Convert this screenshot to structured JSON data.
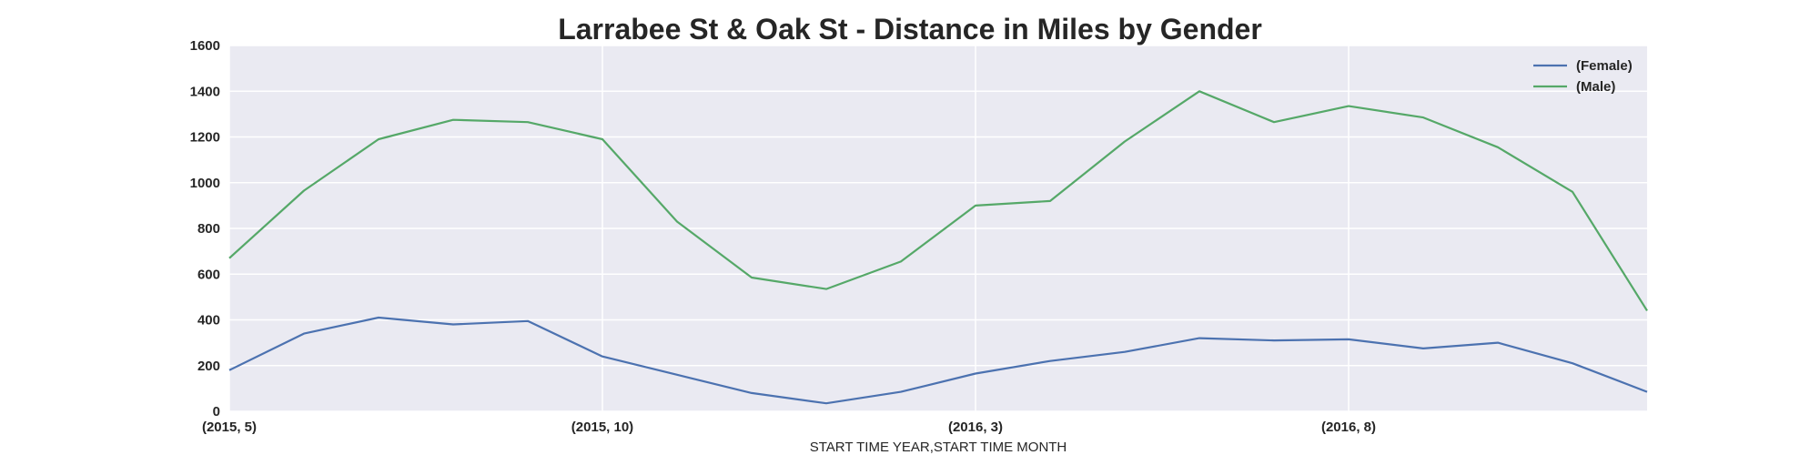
{
  "chart_data": {
    "type": "line",
    "title": "Larrabee St & Oak St - Distance in Miles by Gender",
    "xlabel": "START TIME YEAR,START TIME MONTH",
    "ylabel": "",
    "x": [
      "(2015, 5)",
      "(2015, 6)",
      "(2015, 7)",
      "(2015, 8)",
      "(2015, 9)",
      "(2015, 10)",
      "(2015, 11)",
      "(2015, 12)",
      "(2016, 1)",
      "(2016, 2)",
      "(2016, 3)",
      "(2016, 4)",
      "(2016, 5)",
      "(2016, 6)",
      "(2016, 7)",
      "(2016, 8)",
      "(2016, 9)",
      "(2016, 10)",
      "(2016, 11)",
      "(2016, 12)"
    ],
    "x_tick_labels": [
      "(2015, 5)",
      "(2015, 10)",
      "(2016, 3)",
      "(2016, 8)"
    ],
    "y_tick_labels": [
      "0",
      "200",
      "400",
      "600",
      "800",
      "1000",
      "1200",
      "1400",
      "1600"
    ],
    "ylim": [
      0,
      1600
    ],
    "grid": true,
    "legend_position": "top-right",
    "background_color": "#eaeaf2",
    "series": [
      {
        "name": "(Female)",
        "color": "#4c72b0",
        "values": [
          180,
          340,
          410,
          380,
          395,
          240,
          160,
          80,
          35,
          85,
          165,
          220,
          260,
          320,
          310,
          315,
          275,
          300,
          210,
          85
        ]
      },
      {
        "name": "(Male)",
        "color": "#55a868",
        "values": [
          670,
          965,
          1190,
          1275,
          1265,
          1190,
          830,
          585,
          535,
          655,
          900,
          920,
          1180,
          1400,
          1265,
          1335,
          1285,
          1155,
          960,
          440
        ]
      }
    ]
  }
}
